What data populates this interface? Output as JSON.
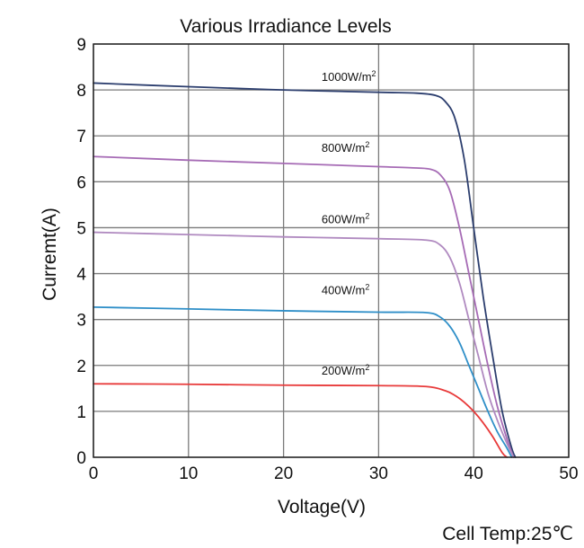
{
  "chart_data": {
    "type": "line",
    "title": "Various Irradiance Levels",
    "xlabel": "Voltage(V)",
    "ylabel": "Curremt(A)",
    "xlim": [
      0,
      50
    ],
    "ylim": [
      0,
      9
    ],
    "xticks": [
      0,
      10,
      20,
      30,
      40,
      50
    ],
    "yticks": [
      0,
      1,
      2,
      3,
      4,
      5,
      6,
      7,
      8,
      9
    ],
    "grid": true,
    "note": "Cell Temp:25℃",
    "series": [
      {
        "name": "1000W/m",
        "sup": "2",
        "color": "#2c3e6e",
        "label_at": [
          24,
          8.2
        ],
        "points": [
          [
            0,
            8.15
          ],
          [
            10,
            8.07
          ],
          [
            20,
            8.0
          ],
          [
            30,
            7.95
          ],
          [
            34,
            7.93
          ],
          [
            36,
            7.88
          ],
          [
            37,
            7.75
          ],
          [
            38,
            7.4
          ],
          [
            39,
            6.5
          ],
          [
            40,
            5.0
          ],
          [
            41,
            3.5
          ],
          [
            42,
            2.2
          ],
          [
            43,
            1.0
          ],
          [
            44,
            0.2
          ],
          [
            44.4,
            0
          ]
        ]
      },
      {
        "name": "800W/m",
        "sup": "2",
        "color": "#a66bb5",
        "label_at": [
          24,
          6.65
        ],
        "points": [
          [
            0,
            6.55
          ],
          [
            10,
            6.47
          ],
          [
            20,
            6.4
          ],
          [
            30,
            6.33
          ],
          [
            34,
            6.3
          ],
          [
            35.5,
            6.27
          ],
          [
            36.5,
            6.15
          ],
          [
            37.5,
            5.8
          ],
          [
            38.5,
            5.0
          ],
          [
            39.5,
            4.0
          ],
          [
            40.5,
            3.0
          ],
          [
            41.5,
            2.0
          ],
          [
            42.5,
            1.1
          ],
          [
            43.5,
            0.4
          ],
          [
            44.2,
            0
          ]
        ]
      },
      {
        "name": "600W/m",
        "sup": "2",
        "color": "#b08ac0",
        "label_at": [
          24,
          5.1
        ],
        "points": [
          [
            0,
            4.9
          ],
          [
            10,
            4.85
          ],
          [
            20,
            4.8
          ],
          [
            30,
            4.76
          ],
          [
            35,
            4.73
          ],
          [
            36.5,
            4.62
          ],
          [
            37.5,
            4.35
          ],
          [
            38.5,
            3.8
          ],
          [
            39.5,
            3.0
          ],
          [
            40.5,
            2.2
          ],
          [
            41.5,
            1.4
          ],
          [
            42.5,
            0.8
          ],
          [
            43.5,
            0.3
          ],
          [
            44.2,
            0
          ]
        ]
      },
      {
        "name": "400W/m",
        "sup": "2",
        "color": "#2f8fc8",
        "label_at": [
          24,
          3.55
        ],
        "points": [
          [
            0,
            3.27
          ],
          [
            10,
            3.23
          ],
          [
            20,
            3.19
          ],
          [
            30,
            3.16
          ],
          [
            35,
            3.15
          ],
          [
            36.5,
            3.05
          ],
          [
            37.5,
            2.85
          ],
          [
            38.5,
            2.5
          ],
          [
            39.5,
            2.0
          ],
          [
            40.5,
            1.5
          ],
          [
            41.5,
            1.0
          ],
          [
            42.5,
            0.55
          ],
          [
            43.5,
            0.2
          ],
          [
            44,
            0
          ]
        ]
      },
      {
        "name": "200W/m",
        "sup": "2",
        "color": "#e83a3a",
        "label_at": [
          24,
          1.8
        ],
        "points": [
          [
            0,
            1.6
          ],
          [
            10,
            1.59
          ],
          [
            20,
            1.57
          ],
          [
            30,
            1.56
          ],
          [
            35,
            1.54
          ],
          [
            37,
            1.45
          ],
          [
            38,
            1.35
          ],
          [
            39,
            1.2
          ],
          [
            40,
            1.0
          ],
          [
            41,
            0.75
          ],
          [
            42,
            0.45
          ],
          [
            43,
            0.1
          ],
          [
            43.5,
            0
          ]
        ]
      }
    ]
  }
}
